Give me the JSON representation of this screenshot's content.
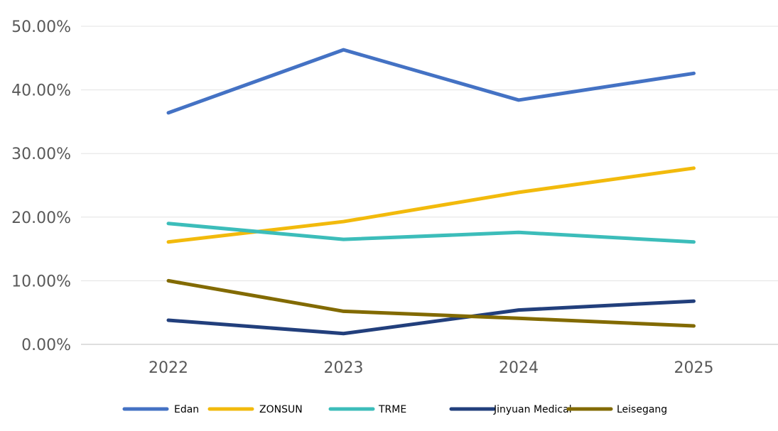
{
  "chart_data": {
    "type": "line",
    "title": "",
    "xlabel": "",
    "ylabel": "",
    "categories": [
      "2022",
      "2023",
      "2024",
      "2025"
    ],
    "ylim": [
      0,
      50
    ],
    "yticks": [
      "0.00%",
      "10.00%",
      "20.00%",
      "30.00%",
      "40.00%",
      "50.00%"
    ],
    "ytick_values": [
      0,
      10,
      20,
      30,
      40,
      50
    ],
    "grid": true,
    "legend_position": "bottom",
    "series": [
      {
        "name": "Edan",
        "color": "#4472C4",
        "values": [
          36.4,
          46.3,
          38.4,
          42.6
        ]
      },
      {
        "name": "ZONSUN",
        "color": "#F2BA0C",
        "values": [
          16.1,
          19.3,
          23.9,
          27.7
        ]
      },
      {
        "name": "TRME",
        "color": "#3CBDBA",
        "values": [
          19.0,
          16.5,
          17.6,
          16.1
        ]
      },
      {
        "name": "Jinyuan Medical",
        "color": "#223F7C",
        "values": [
          3.8,
          1.7,
          5.4,
          6.8
        ]
      },
      {
        "name": "Leisegang",
        "color": "#826A00",
        "values": [
          10.0,
          5.2,
          4.1,
          2.9
        ]
      }
    ]
  }
}
